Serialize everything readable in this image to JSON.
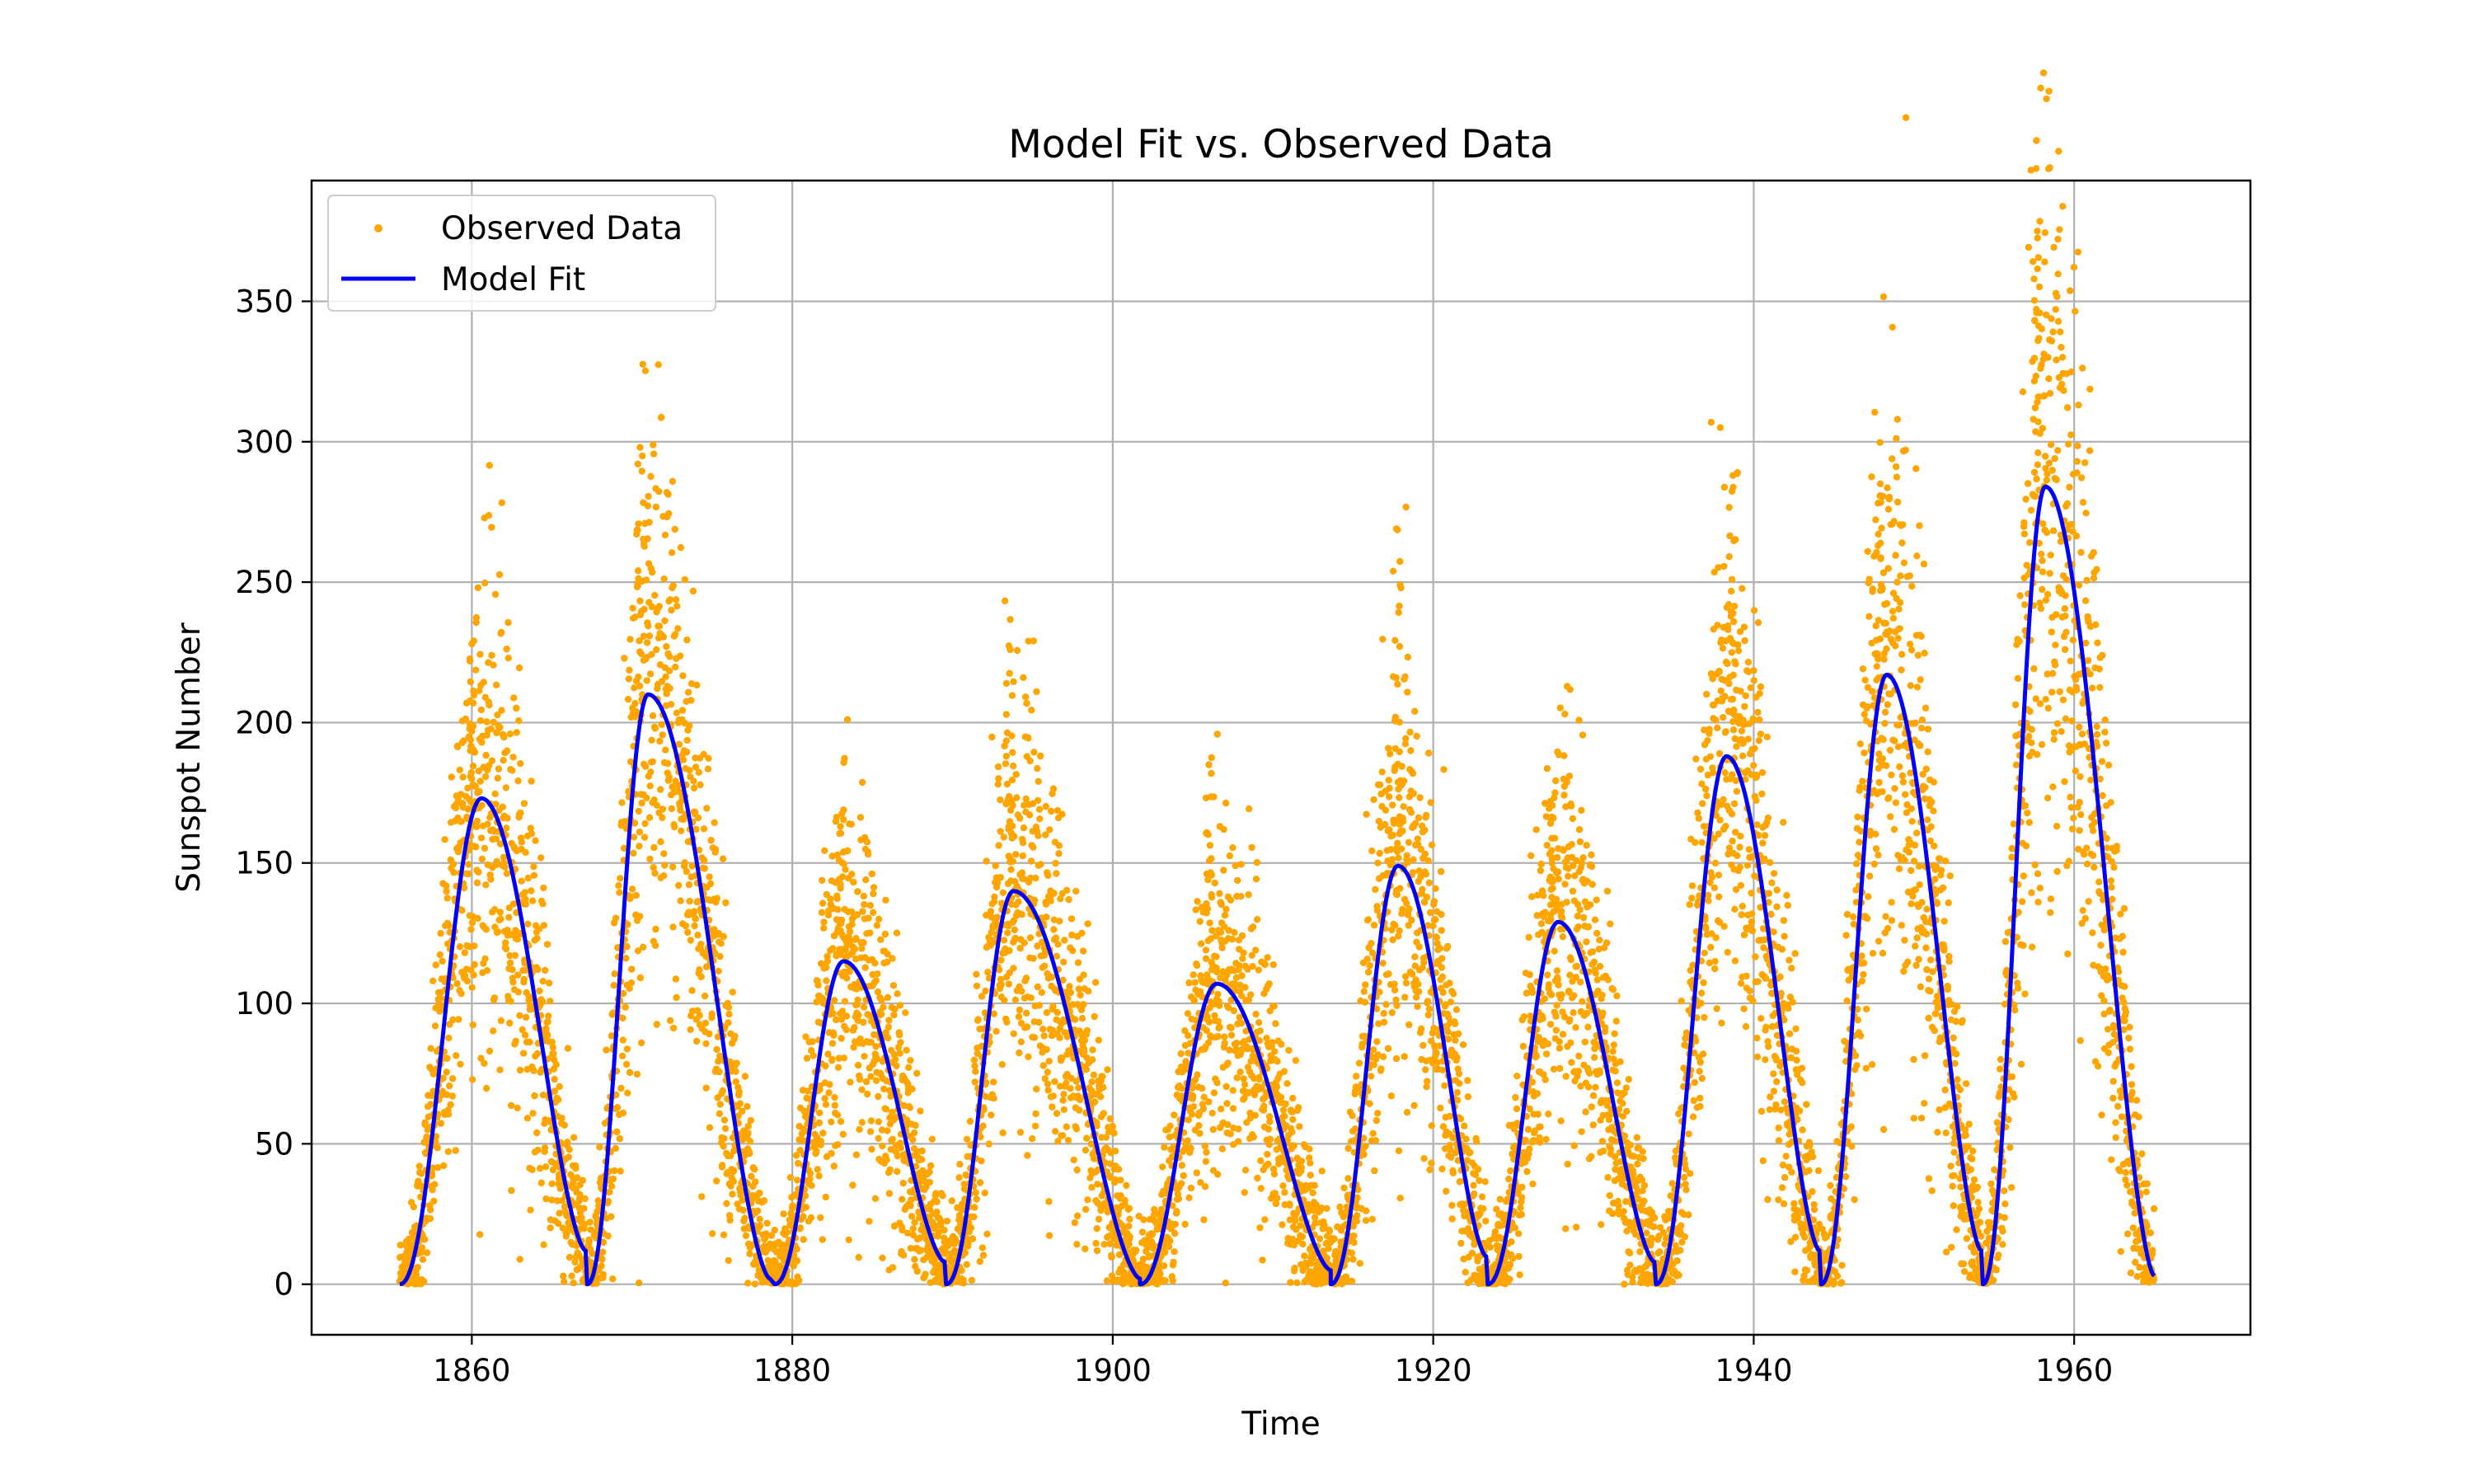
{
  "chart_data": {
    "type": "scatter",
    "title": "Model Fit vs. Observed Data",
    "xlabel": "Time",
    "ylabel": "Sunspot Number",
    "xlim": [
      1850,
      1971
    ],
    "ylim": [
      -18,
      393
    ],
    "xticks": [
      1860,
      1880,
      1900,
      1920,
      1940,
      1960
    ],
    "yticks": [
      0,
      50,
      100,
      150,
      200,
      250,
      300,
      350
    ],
    "grid": true,
    "legend_position": "top-left",
    "x_range": [
      1855.5,
      1965.0
    ],
    "series": [
      {
        "name": "Observed Data",
        "kind": "scatter",
        "color": "#ffa500"
      },
      {
        "name": "Model Fit",
        "kind": "line",
        "color": "#0000ff"
      }
    ],
    "model_cycles": [
      {
        "start": 1855.5,
        "peak": 1860.6,
        "peak_value": 173,
        "end": 1867.1,
        "end_value": 12
      },
      {
        "start": 1867.2,
        "peak": 1871.0,
        "peak_value": 210,
        "end": 1878.6,
        "end_value": 2
      },
      {
        "start": 1878.9,
        "peak": 1883.2,
        "peak_value": 115,
        "end": 1889.5,
        "end_value": 8
      },
      {
        "start": 1889.6,
        "peak": 1893.8,
        "peak_value": 140,
        "end": 1901.7,
        "end_value": 2
      },
      {
        "start": 1901.7,
        "peak": 1906.5,
        "peak_value": 107,
        "end": 1913.6,
        "end_value": 5
      },
      {
        "start": 1913.6,
        "peak": 1917.8,
        "peak_value": 149,
        "end": 1923.3,
        "end_value": 10
      },
      {
        "start": 1923.4,
        "peak": 1927.8,
        "peak_value": 129,
        "end": 1933.8,
        "end_value": 8
      },
      {
        "start": 1933.9,
        "peak": 1938.3,
        "peak_value": 188,
        "end": 1944.1,
        "end_value": 12
      },
      {
        "start": 1944.2,
        "peak": 1948.3,
        "peak_value": 217,
        "end": 1954.2,
        "end_value": 12
      },
      {
        "start": 1954.3,
        "peak": 1958.2,
        "peak_value": 284,
        "end": 1965.0,
        "end_value": 3
      }
    ],
    "observed_peaks": [
      {
        "x": 1860.0,
        "y": 228
      },
      {
        "x": 1870.5,
        "y": 298
      },
      {
        "x": 1883.0,
        "y": 163
      },
      {
        "x": 1893.6,
        "y": 226
      },
      {
        "x": 1906.0,
        "y": 185
      },
      {
        "x": 1917.7,
        "y": 269
      },
      {
        "x": 1927.5,
        "y": 166
      },
      {
        "x": 1938.7,
        "y": 288
      },
      {
        "x": 1947.9,
        "y": 285
      },
      {
        "x": 1957.7,
        "y": 375
      }
    ]
  }
}
